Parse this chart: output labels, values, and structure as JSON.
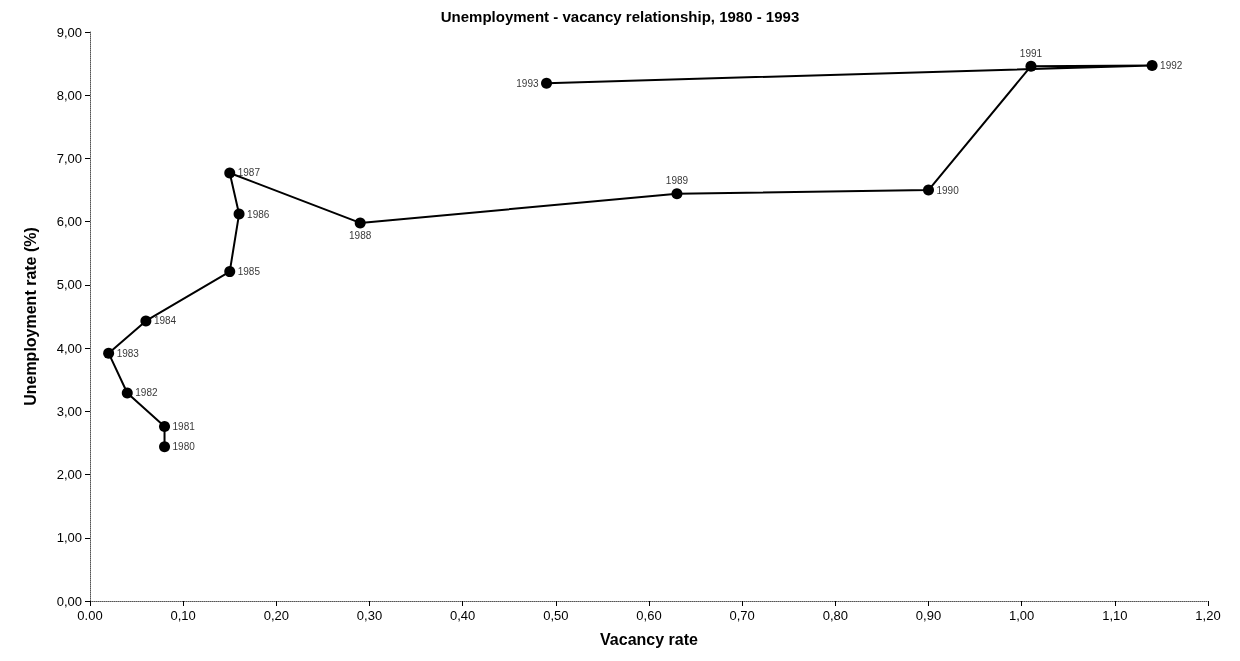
{
  "chart_data": {
    "type": "line",
    "title": "Unemployment - vacancy relationship, 1980 - 1993",
    "xlabel": "Vacancy rate",
    "ylabel": "Unemployment rate (%)",
    "x": [
      0.08,
      0.08,
      0.04,
      0.02,
      0.06,
      0.15,
      0.16,
      0.15,
      0.29,
      0.63,
      0.9,
      1.01,
      1.14,
      0.49
    ],
    "series": [
      {
        "color": "#000000",
        "values": [
          2.44,
          2.76,
          3.29,
          3.92,
          4.43,
          5.21,
          6.12,
          6.77,
          5.98,
          6.44,
          6.5,
          8.46,
          8.47,
          8.19
        ]
      }
    ],
    "annotations": [
      {
        "text": "1980",
        "x": 0.08,
        "y": 2.44
      },
      {
        "text": "1981",
        "x": 0.08,
        "y": 2.76
      },
      {
        "text": "1982",
        "x": 0.04,
        "y": 3.29
      },
      {
        "text": "1983",
        "x": 0.02,
        "y": 3.92
      },
      {
        "text": "1984",
        "x": 0.06,
        "y": 4.43
      },
      {
        "text": "1985",
        "x": 0.15,
        "y": 5.21
      },
      {
        "text": "1986",
        "x": 0.16,
        "y": 6.12
      },
      {
        "text": "1987",
        "x": 0.15,
        "y": 6.77
      },
      {
        "text": "1988",
        "x": 0.29,
        "y": 5.98
      },
      {
        "text": "1989",
        "x": 0.63,
        "y": 6.44
      },
      {
        "text": "1990",
        "x": 0.9,
        "y": 6.5
      },
      {
        "text": "1991",
        "x": 1.01,
        "y": 8.46
      },
      {
        "text": "1992",
        "x": 1.14,
        "y": 8.47
      },
      {
        "text": "1993",
        "x": 0.49,
        "y": 8.19
      }
    ],
    "xlim": [
      0,
      1.2
    ],
    "xticks": [
      {
        "value": 0,
        "label": "0.00"
      },
      {
        "value": 0.1,
        "label": "0,10"
      },
      {
        "value": 0.2,
        "label": "0,20"
      },
      {
        "value": 0.3,
        "label": "0,30"
      },
      {
        "value": 0.4,
        "label": "0,40"
      },
      {
        "value": 0.5,
        "label": "0,50"
      },
      {
        "value": 0.6,
        "label": "0,60"
      },
      {
        "value": 0.7,
        "label": "0,70"
      },
      {
        "value": 0.8,
        "label": "0,80"
      },
      {
        "value": 0.9,
        "label": "0,90"
      },
      {
        "value": 1.0,
        "label": "1,00"
      },
      {
        "value": 1.1,
        "label": "1,10"
      },
      {
        "value": 1.2,
        "label": "1,20"
      }
    ],
    "ylim": [
      0,
      9
    ],
    "yticks": [
      {
        "value": 0,
        "label": "0,00"
      },
      {
        "value": 1,
        "label": "1,00"
      },
      {
        "value": 2,
        "label": "2,00"
      },
      {
        "value": 3,
        "label": "3,00"
      },
      {
        "value": 4,
        "label": "4,00"
      },
      {
        "value": 5,
        "label": "5,00"
      },
      {
        "value": 6,
        "label": "6,00"
      },
      {
        "value": 7,
        "label": "7,00"
      },
      {
        "value": 8,
        "label": "8,00"
      },
      {
        "value": 9,
        "label": "9,00"
      }
    ],
    "grid": false,
    "marker": "circle",
    "line_style": "solid"
  }
}
